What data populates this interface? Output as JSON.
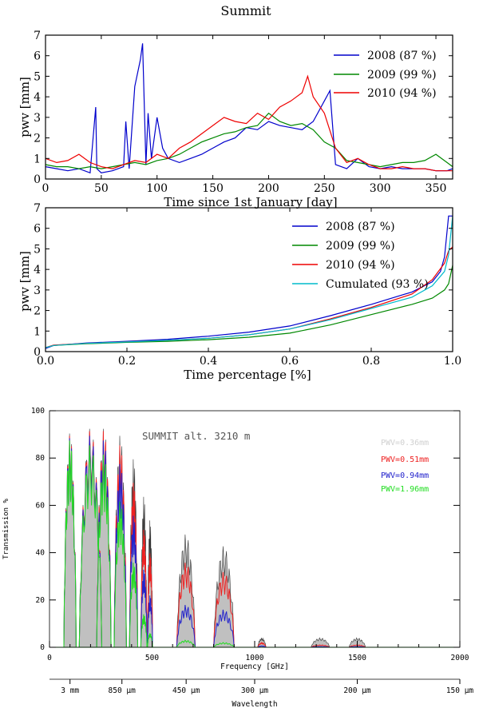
{
  "figure_title": "Summit",
  "colors": {
    "y2008": "#0000cc",
    "y2009": "#008800",
    "y2010": "#ee0000",
    "cumulated": "#00bbcc",
    "pwv036": "#d0d0d0",
    "pwv051": "#ee2222",
    "pwv094": "#2222cc",
    "pwv196": "#22dd22",
    "fill": "#c0c0c0"
  },
  "chart_data": [
    {
      "type": "line",
      "title": "",
      "xlabel": "Time since 1st January [day]",
      "ylabel": "pwv [mm]",
      "xlim": [
        0,
        365
      ],
      "ylim": [
        0,
        7
      ],
      "xticks": [
        "0",
        "50",
        "100",
        "150",
        "200",
        "250",
        "300",
        "350"
      ],
      "yticks": [
        "0",
        "1",
        "2",
        "3",
        "4",
        "5",
        "6",
        "7"
      ],
      "legend": "top-right",
      "series": [
        {
          "name": "2008 (87 %)",
          "color_key": "y2008",
          "x": [
            0,
            10,
            20,
            30,
            40,
            45,
            46,
            50,
            60,
            70,
            72,
            75,
            80,
            85,
            87,
            90,
            92,
            95,
            100,
            105,
            110,
            120,
            130,
            140,
            150,
            160,
            170,
            180,
            190,
            200,
            210,
            220,
            230,
            240,
            250,
            255,
            260,
            270,
            280,
            290,
            300,
            310,
            320,
            330,
            340,
            350,
            360,
            365
          ],
          "y": [
            0.6,
            0.5,
            0.4,
            0.5,
            0.3,
            3.5,
            0.5,
            0.3,
            0.4,
            0.6,
            2.8,
            0.5,
            4.5,
            5.8,
            6.6,
            0.7,
            3.2,
            1.0,
            3.0,
            1.5,
            1.0,
            0.8,
            1.0,
            1.2,
            1.5,
            1.8,
            2.0,
            2.5,
            2.4,
            2.8,
            2.6,
            2.5,
            2.4,
            2.8,
            3.8,
            4.3,
            0.7,
            0.5,
            1.0,
            0.6,
            0.5,
            0.6,
            0.5,
            0.5,
            0.5,
            0.4,
            0.4,
            0.5
          ]
        },
        {
          "name": "2009 (99 %)",
          "color_key": "y2009",
          "x": [
            0,
            10,
            20,
            30,
            40,
            50,
            60,
            70,
            80,
            90,
            100,
            110,
            120,
            130,
            140,
            150,
            160,
            170,
            180,
            190,
            200,
            210,
            220,
            230,
            240,
            250,
            260,
            270,
            280,
            290,
            300,
            310,
            320,
            330,
            340,
            350,
            360,
            365
          ],
          "y": [
            0.7,
            0.6,
            0.6,
            0.5,
            0.6,
            0.5,
            0.6,
            0.7,
            0.8,
            0.7,
            0.9,
            1.0,
            1.2,
            1.5,
            1.8,
            2.0,
            2.2,
            2.3,
            2.5,
            2.6,
            3.2,
            2.8,
            2.6,
            2.7,
            2.4,
            1.8,
            1.5,
            0.9,
            0.8,
            0.7,
            0.6,
            0.7,
            0.8,
            0.8,
            0.9,
            1.2,
            0.8,
            0.6
          ]
        },
        {
          "name": "2010 (94 %)",
          "color_key": "y2010",
          "x": [
            0,
            10,
            20,
            30,
            40,
            50,
            60,
            70,
            80,
            90,
            100,
            110,
            120,
            130,
            140,
            150,
            160,
            170,
            180,
            190,
            200,
            210,
            220,
            230,
            235,
            240,
            250,
            260,
            270,
            280,
            290,
            300,
            310,
            320,
            330,
            340,
            350,
            360,
            365
          ],
          "y": [
            1.0,
            0.8,
            0.9,
            1.2,
            0.8,
            0.6,
            0.5,
            0.7,
            0.9,
            0.8,
            1.2,
            1.0,
            1.5,
            1.8,
            2.2,
            2.6,
            3.0,
            2.8,
            2.7,
            3.2,
            2.9,
            3.5,
            3.8,
            4.2,
            5.0,
            4.0,
            3.2,
            1.5,
            0.8,
            1.0,
            0.7,
            0.5,
            0.5,
            0.6,
            0.5,
            0.5,
            0.4,
            0.4,
            0.4
          ]
        }
      ]
    },
    {
      "type": "line",
      "title": "",
      "xlabel": "Time percentage [%]",
      "ylabel": "pwv [mm]",
      "xlim": [
        0,
        1
      ],
      "ylim": [
        0,
        7
      ],
      "xticks": [
        "0.0",
        "0.2",
        "0.4",
        "0.6",
        "0.8",
        "1.0"
      ],
      "yticks": [
        "0",
        "1",
        "2",
        "3",
        "4",
        "5",
        "6",
        "7"
      ],
      "legend": "top-right",
      "series": [
        {
          "name": "2008 (87 %)",
          "color_key": "y2008",
          "x": [
            0,
            0.02,
            0.1,
            0.2,
            0.3,
            0.4,
            0.5,
            0.6,
            0.7,
            0.8,
            0.9,
            0.95,
            0.97,
            0.98,
            0.99,
            1.0
          ],
          "y": [
            0.15,
            0.3,
            0.42,
            0.5,
            0.6,
            0.75,
            0.95,
            1.25,
            1.75,
            2.3,
            2.9,
            3.4,
            3.9,
            4.6,
            6.6,
            6.6
          ]
        },
        {
          "name": "2009 (99 %)",
          "color_key": "y2009",
          "x": [
            0,
            0.02,
            0.1,
            0.2,
            0.3,
            0.4,
            0.5,
            0.6,
            0.7,
            0.8,
            0.9,
            0.95,
            0.98,
            0.99,
            1.0
          ],
          "y": [
            0.2,
            0.3,
            0.38,
            0.45,
            0.5,
            0.58,
            0.7,
            0.9,
            1.3,
            1.8,
            2.3,
            2.6,
            3.0,
            3.3,
            4.2
          ]
        },
        {
          "name": "2010 (94 %)",
          "color_key": "y2010",
          "x": [
            0,
            0.02,
            0.1,
            0.2,
            0.3,
            0.4,
            0.5,
            0.6,
            0.7,
            0.8,
            0.9,
            0.95,
            0.98,
            0.99,
            1.0
          ],
          "y": [
            0.2,
            0.32,
            0.4,
            0.48,
            0.55,
            0.65,
            0.82,
            1.1,
            1.6,
            2.15,
            2.8,
            3.5,
            4.3,
            4.9,
            5.1
          ]
        },
        {
          "name": "Cumulated (93 %)",
          "color_key": "cumulated",
          "x": [
            0,
            0.02,
            0.1,
            0.2,
            0.3,
            0.4,
            0.5,
            0.6,
            0.7,
            0.8,
            0.9,
            0.95,
            0.98,
            0.99,
            1.0
          ],
          "y": [
            0.2,
            0.3,
            0.4,
            0.47,
            0.55,
            0.65,
            0.82,
            1.1,
            1.55,
            2.1,
            2.65,
            3.2,
            3.9,
            4.7,
            6.6
          ]
        }
      ]
    },
    {
      "type": "area",
      "title": "SUMMIT alt. 3210 m",
      "xlabel": "Frequency [GHz]",
      "ylabel": "Transmission %",
      "secondary_xlabel": "Wavelength",
      "xlim": [
        0,
        2000
      ],
      "ylim": [
        0,
        100
      ],
      "xticks": [
        "0",
        "500",
        "1000",
        "1500",
        "2000"
      ],
      "yticks": [
        "0",
        "20",
        "40",
        "60",
        "80",
        "100"
      ],
      "wavelength_ticks": [
        {
          "label": "3 mm",
          "freq": 100
        },
        {
          "label": "850 μm",
          "freq": 353
        },
        {
          "label": "450 μm",
          "freq": 666
        },
        {
          "label": "300 μm",
          "freq": 1000
        },
        {
          "label": "200 μm",
          "freq": 1500
        },
        {
          "label": "150 μm",
          "freq": 2000
        }
      ],
      "legend": "top-right",
      "windows": [
        {
          "center": 100,
          "width": 60
        },
        {
          "center": 200,
          "width": 110
        },
        {
          "center": 265,
          "width": 70
        },
        {
          "center": 345,
          "width": 60
        },
        {
          "center": 410,
          "width": 40
        },
        {
          "center": 460,
          "width": 30
        },
        {
          "center": 490,
          "width": 25
        },
        {
          "center": 665,
          "width": 90
        },
        {
          "center": 850,
          "width": 100
        },
        {
          "center": 1035,
          "width": 40
        },
        {
          "center": 1320,
          "width": 90
        },
        {
          "center": 1500,
          "width": 80
        }
      ],
      "series": [
        {
          "name": "PWV=0.36mm",
          "color_key": "pwv036",
          "peaks": [
            91,
            93,
            93,
            90,
            80,
            64,
            54,
            48,
            43,
            4,
            4,
            4
          ]
        },
        {
          "name": "PWV=0.51mm",
          "color_key": "pwv051",
          "peaks": [
            90,
            92,
            92,
            86,
            70,
            50,
            40,
            36,
            32,
            2,
            1,
            1
          ]
        },
        {
          "name": "PWV=0.94mm",
          "color_key": "pwv094",
          "peaks": [
            89,
            90,
            88,
            78,
            56,
            33,
            22,
            18,
            16,
            0.6,
            0.3,
            0.3
          ]
        },
        {
          "name": "PWV=1.96mm",
          "color_key": "pwv196",
          "peaks": [
            88,
            86,
            82,
            62,
            36,
            14,
            6,
            3,
            2,
            0,
            0,
            0
          ]
        }
      ]
    }
  ]
}
